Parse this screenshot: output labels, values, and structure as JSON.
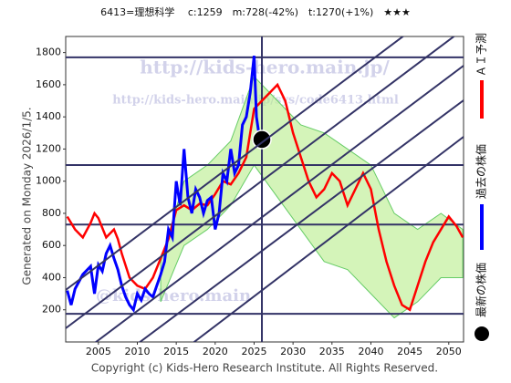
{
  "chart_data": {
    "type": "line",
    "title": "6413=理想科学　 c:1259　m:728(-42%)　t:1270(+1%)　★★★",
    "side_note": "Generated on Monday 2026/1/5.",
    "copyright": "Copyright (c) Kids-Hero Research Institute. All Rights Reserved.",
    "watermarks": [
      "http://kids-hero.main.jp/",
      "http://kids-hero.main.jp/sys/code6413.html",
      "@kids-hero.main"
    ],
    "xlim": [
      2000.8,
      2051.9
    ],
    "ylim": [
      0,
      1900
    ],
    "xticks": [
      2005,
      2010,
      2015,
      2020,
      2025,
      2030,
      2035,
      2040,
      2045,
      2050
    ],
    "yticks": [
      200,
      400,
      600,
      800,
      1000,
      1200,
      1400,
      1600,
      1800
    ],
    "levels": [
      1770,
      1100,
      730,
      175
    ],
    "band": {
      "color": "#b8ec8a",
      "x": [
        2013,
        2016,
        2019,
        2022,
        2025,
        2028,
        2031,
        2034,
        2037,
        2040,
        2043,
        2046,
        2049,
        2051.8
      ],
      "upper": [
        500,
        1000,
        1100,
        1250,
        1650,
        1500,
        1350,
        1300,
        1200,
        1100,
        800,
        700,
        800,
        700
      ],
      "lower": [
        250,
        600,
        700,
        850,
        1100,
        900,
        700,
        500,
        450,
        300,
        150,
        250,
        400,
        400
      ]
    },
    "series": [
      {
        "name": "ＡＩ予測",
        "color": "#ff0000",
        "x": [
          2001,
          2002,
          2003,
          2004,
          2004.5,
          2005,
          2006,
          2007,
          2007.5,
          2008,
          2009,
          2010,
          2011,
          2012,
          2013,
          2014,
          2015,
          2016,
          2017,
          2018,
          2019,
          2020,
          2021,
          2022,
          2023,
          2024,
          2025,
          2026,
          2027,
          2028,
          2029,
          2030,
          2031,
          2032,
          2033,
          2034,
          2035,
          2036,
          2037,
          2038,
          2039,
          2040,
          2041,
          2042,
          2043,
          2044,
          2045,
          2046,
          2047,
          2048,
          2049,
          2050,
          2051,
          2051.8
        ],
        "values": [
          780,
          700,
          650,
          740,
          800,
          770,
          650,
          700,
          640,
          550,
          400,
          350,
          330,
          400,
          520,
          640,
          820,
          850,
          820,
          860,
          850,
          920,
          1000,
          980,
          1050,
          1150,
          1450,
          1500,
          1550,
          1600,
          1500,
          1300,
          1150,
          1000,
          900,
          950,
          1050,
          1000,
          850,
          950,
          1050,
          950,
          700,
          500,
          350,
          230,
          200,
          350,
          500,
          620,
          700,
          780,
          720,
          650
        ]
      },
      {
        "name": "過去の株価",
        "color": "#0000ff",
        "x": [
          2001,
          2001.5,
          2002,
          2003,
          2004,
          2004.5,
          2005,
          2005.5,
          2006,
          2006.5,
          2007,
          2007.5,
          2008,
          2008.5,
          2009,
          2009.5,
          2010,
          2010.5,
          2011,
          2011.5,
          2012,
          2012.5,
          2013,
          2013.5,
          2014,
          2014.5,
          2015,
          2015.5,
          2016,
          2016.5,
          2017,
          2017.5,
          2018,
          2018.5,
          2019,
          2019.5,
          2020,
          2020.5,
          2021,
          2021.5,
          2022,
          2022.5,
          2023,
          2023.5,
          2024,
          2024.5,
          2025,
          2025.3,
          2025.6,
          2026
        ],
        "values": [
          320,
          230,
          330,
          420,
          470,
          300,
          480,
          440,
          550,
          600,
          520,
          450,
          350,
          280,
          230,
          200,
          300,
          260,
          330,
          300,
          280,
          350,
          420,
          500,
          700,
          650,
          1000,
          850,
          1200,
          900,
          800,
          950,
          900,
          800,
          880,
          900,
          700,
          800,
          1050,
          1000,
          1200,
          1050,
          1100,
          1350,
          1400,
          1550,
          1780,
          1400,
          1300,
          1259
        ]
      }
    ],
    "latest": {
      "name": "最新の株価",
      "x": 2026,
      "value": 1259
    }
  }
}
